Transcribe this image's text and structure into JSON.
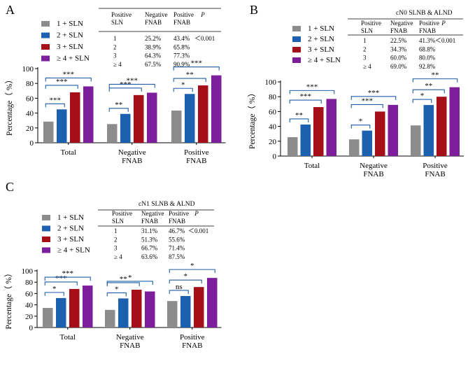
{
  "colors": {
    "gray": "#8c8c8c",
    "blue": "#1c61b0",
    "red": "#a50f17",
    "purple": "#7d1f9d",
    "bracket": "#1f5fa8",
    "axis": "#000000"
  },
  "legend_labels": [
    "1 + SLN",
    "2 + SLN",
    "3 + SLN",
    "≥ 4 + SLN"
  ],
  "chart_data": [
    {
      "panel": "A",
      "type": "bar",
      "title": "",
      "ylabel": "Percentage（ %）",
      "xlabel": "",
      "ylim": [
        0,
        100
      ],
      "yticks": [
        0,
        20,
        40,
        60,
        80,
        100
      ],
      "categories": [
        [
          "Total"
        ],
        [
          "Negative",
          "FNAB"
        ],
        [
          "Positive",
          "FNAB"
        ]
      ],
      "series": [
        {
          "name": "1 + SLN",
          "values": [
            28.5,
            25.2,
            43.4
          ]
        },
        {
          "name": "2 + SLN",
          "values": [
            45,
            38.9,
            65.8
          ]
        },
        {
          "name": "3 + SLN",
          "values": [
            68,
            64.3,
            77.3
          ]
        },
        {
          "name": "≥ 4 + SLN",
          "values": [
            76,
            67.5,
            90.9
          ]
        }
      ],
      "significance": [
        [
          {
            "from": 0,
            "to": 1,
            "label": "***"
          },
          {
            "from": 0,
            "to": 2,
            "label": "***"
          },
          {
            "from": 0,
            "to": 3,
            "label": "***"
          }
        ],
        [
          {
            "from": 0,
            "to": 1,
            "label": "**"
          },
          {
            "from": 0,
            "to": 2,
            "label": "***"
          },
          {
            "from": 0,
            "to": 3,
            "label": "***"
          }
        ],
        [
          {
            "from": 0,
            "to": 1,
            "label": "*"
          },
          {
            "from": 0,
            "to": 2,
            "label": "**"
          },
          {
            "from": 0,
            "to": 3,
            "label": "***"
          }
        ]
      ],
      "table": {
        "heading": "",
        "columns": [
          [
            "Positive",
            "SLN"
          ],
          [
            "Negative",
            "FNAB"
          ],
          [
            "Positive",
            "FNAB"
          ],
          [
            "P",
            ""
          ]
        ],
        "rows": [
          [
            "1",
            "25.2%",
            "43.4%",
            "＜0.001"
          ],
          [
            "2",
            "38.9%",
            "65.8%",
            ""
          ],
          [
            "3",
            "64.3%",
            "77.3%",
            ""
          ],
          [
            "≥ 4",
            "67.5%",
            "90.9%",
            ""
          ]
        ]
      }
    },
    {
      "panel": "B",
      "type": "bar",
      "title": "",
      "ylabel": "Percentage（ %）",
      "xlabel": "",
      "ylim": [
        0,
        100
      ],
      "yticks": [
        0,
        20,
        40,
        60,
        80,
        100
      ],
      "categories": [
        [
          "Total"
        ],
        [
          "Negative",
          "FNAB"
        ],
        [
          "Positive",
          "FNAB"
        ]
      ],
      "series": [
        {
          "name": "1 + SLN",
          "values": [
            25.5,
            22.5,
            41.3
          ]
        },
        {
          "name": "2 + SLN",
          "values": [
            42.5,
            34.3,
            68.8
          ]
        },
        {
          "name": "3 + SLN",
          "values": [
            66,
            60,
            80
          ]
        },
        {
          "name": "≥ 4 + SLN",
          "values": [
            77,
            69,
            92.8
          ]
        }
      ],
      "significance": [
        [
          {
            "from": 0,
            "to": 1,
            "label": "**"
          },
          {
            "from": 0,
            "to": 2,
            "label": "***"
          },
          {
            "from": 0,
            "to": 3,
            "label": "***"
          }
        ],
        [
          {
            "from": 0,
            "to": 1,
            "label": "*"
          },
          {
            "from": 0,
            "to": 2,
            "label": "***"
          },
          {
            "from": 0,
            "to": 3,
            "label": "***"
          }
        ],
        [
          {
            "from": 0,
            "to": 1,
            "label": "*"
          },
          {
            "from": 0,
            "to": 2,
            "label": "**"
          },
          {
            "from": 0,
            "to": 3,
            "label": "**"
          }
        ]
      ],
      "table": {
        "heading": "cN0   SLNB & ALND",
        "columns": [
          [
            "Positive",
            "SLN"
          ],
          [
            "Negative",
            "FNAB"
          ],
          [
            "Positive",
            "FNAB"
          ],
          [
            "P",
            ""
          ]
        ],
        "rows": [
          [
            "1",
            "22.5%",
            "41.3%",
            "＜0.001"
          ],
          [
            "2",
            "34.3%",
            "68.8%",
            ""
          ],
          [
            "3",
            "60.0%",
            "80.0%",
            ""
          ],
          [
            "≥ 4",
            "69.0%",
            "92.8%",
            ""
          ]
        ]
      }
    },
    {
      "panel": "C",
      "type": "bar",
      "title": "",
      "ylabel": "Percentage（ %）",
      "xlabel": "",
      "ylim": [
        0,
        100
      ],
      "yticks": [
        0,
        20,
        40,
        60,
        80,
        100
      ],
      "categories": [
        [
          "Total"
        ],
        [
          "Negative",
          "FNAB"
        ],
        [
          "Positive",
          "FNAB"
        ]
      ],
      "series": [
        {
          "name": "1 + SLN",
          "values": [
            34.5,
            31.1,
            46.7
          ]
        },
        {
          "name": "2 + SLN",
          "values": [
            52,
            51.3,
            55.6
          ]
        },
        {
          "name": "3 + SLN",
          "values": [
            68,
            66.7,
            71.4
          ]
        },
        {
          "name": "≥ 4 + SLN",
          "values": [
            74,
            63.6,
            87.5
          ]
        }
      ],
      "significance": [
        [
          {
            "from": 0,
            "to": 1,
            "label": "*"
          },
          {
            "from": 0,
            "to": 2,
            "label": "***"
          },
          {
            "from": 0,
            "to": 3,
            "label": "***"
          }
        ],
        [
          {
            "from": 0,
            "to": 1,
            "label": "*"
          },
          {
            "from": 0,
            "to": 2,
            "label": "**"
          },
          {
            "from": 0,
            "to": 3,
            "label": "*"
          }
        ],
        [
          {
            "from": 0,
            "to": 1,
            "label": "ns"
          },
          {
            "from": 0,
            "to": 2,
            "label": "*"
          },
          {
            "from": 0,
            "to": 3,
            "label": "*"
          }
        ]
      ],
      "table": {
        "heading": "cN1   SLNB & ALND",
        "columns": [
          [
            "Positive",
            "SLN"
          ],
          [
            "Negative",
            "FNAB"
          ],
          [
            "Positive",
            "FNAB"
          ],
          [
            "P",
            ""
          ]
        ],
        "rows": [
          [
            "1",
            "31.1%",
            "46.7%",
            "＜0.001"
          ],
          [
            "2",
            "51.3%",
            "55.6%",
            ""
          ],
          [
            "3",
            "66.7%",
            "71.4%",
            ""
          ],
          [
            "≥ 4",
            "63.6%",
            "87.5%",
            ""
          ]
        ]
      }
    }
  ]
}
